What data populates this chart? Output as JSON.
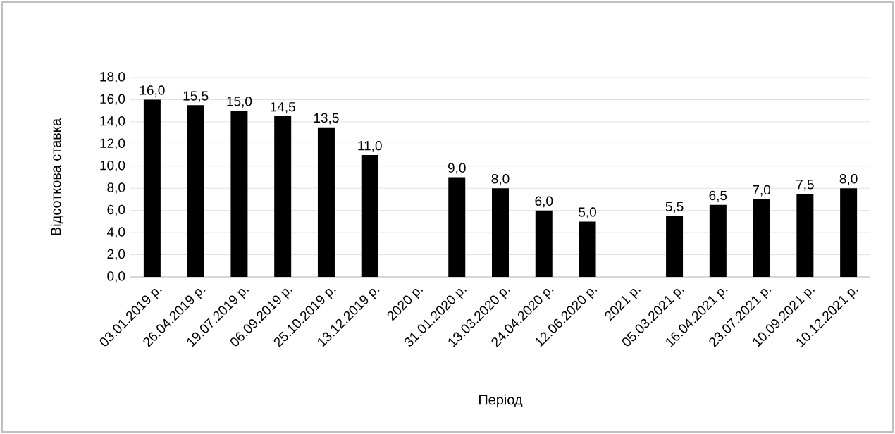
{
  "chart_data": {
    "type": "bar",
    "xlabel": "Період",
    "ylabel": "Відсоткова ставка",
    "categories": [
      "03.01.2019 р.",
      "26.04.2019 р.",
      "19.07.2019 р.",
      "06.09.2019 р.",
      "25.10.2019 р.",
      "13.12.2019 р.",
      "2020 р.",
      "31.01.2020 р.",
      "13.03.2020 р.",
      "24.04.2020 р.",
      "12.06.2020 р.",
      "2021 р.",
      "05.03.2021 р.",
      "16.04.2021 р.",
      "23.07.2021 р.",
      "10.09.2021 р.",
      "10.12.2021 р."
    ],
    "values": [
      16.0,
      15.5,
      15.0,
      14.5,
      13.5,
      11.0,
      null,
      9.0,
      8.0,
      6.0,
      5.0,
      null,
      5.5,
      6.5,
      7.0,
      7.5,
      8.0
    ],
    "value_labels": [
      "16,0",
      "15,5",
      "15,0",
      "14,5",
      "13,5",
      "11,0",
      null,
      "9,0",
      "8,0",
      "6,0",
      "5,0",
      null,
      "5,5",
      "6,5",
      "7,0",
      "7,5",
      "8,0"
    ],
    "color": "#000000",
    "ylim": [
      0,
      18
    ],
    "yticks": [
      {
        "value": 0,
        "label": "0,0"
      },
      {
        "value": 2,
        "label": "2,0"
      },
      {
        "value": 4,
        "label": "4,0"
      },
      {
        "value": 6,
        "label": "6,0"
      },
      {
        "value": 8,
        "label": "8,0"
      },
      {
        "value": 10,
        "label": "10,0"
      },
      {
        "value": 12,
        "label": "12,0"
      },
      {
        "value": 14,
        "label": "14,0"
      },
      {
        "value": 16,
        "label": "16,0"
      },
      {
        "value": 18,
        "label": "18,0"
      }
    ],
    "grid": "y"
  }
}
